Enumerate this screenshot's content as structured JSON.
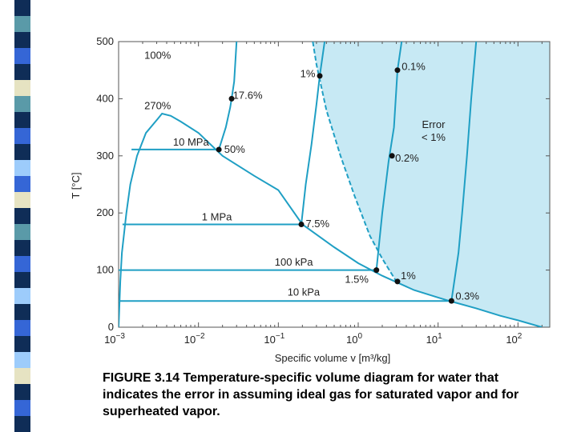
{
  "colors": {
    "curve": "#1f9fc4",
    "region": "#c7e9f4",
    "marker": "#111111",
    "strip": [
      "#0f2d57",
      "#5a9aa8",
      "#0f2d57",
      "#3566d6",
      "#0f2d57",
      "#e6e3c2",
      "#5a9aa8",
      "#0f2d57",
      "#3566d6",
      "#0f2d57",
      "#9dccfb",
      "#3566d6",
      "#e6e3c2",
      "#0f2d57",
      "#5a9aa8",
      "#0f2d57",
      "#3566d6",
      "#0f2d57",
      "#9dccfb",
      "#0f2d57",
      "#3566d6",
      "#0f2d57",
      "#9dccfb",
      "#e6e3c2",
      "#0f2d57",
      "#3566d6",
      "#0f2d57"
    ]
  },
  "chart_data": {
    "type": "line",
    "xlabel": "Specific volume v [m³/kg]",
    "ylabel": "T [°C]",
    "xscale": "log",
    "xlim": [
      0.001,
      250
    ],
    "ylim": [
      0,
      500
    ],
    "xticks": [
      {
        "value": 0.001,
        "base": "10",
        "exp": "−3"
      },
      {
        "value": 0.01,
        "base": "10",
        "exp": "−2"
      },
      {
        "value": 0.1,
        "base": "10",
        "exp": "−1"
      },
      {
        "value": 1,
        "base": "10",
        "exp": "0"
      },
      {
        "value": 10,
        "base": "10",
        "exp": "1"
      },
      {
        "value": 100,
        "base": "10",
        "exp": "2"
      }
    ],
    "yticks": [
      0,
      100,
      200,
      300,
      400,
      500
    ],
    "region_label": [
      "Error",
      "< 1%"
    ],
    "series": [
      {
        "kind": "saturation-dome",
        "points": [
          [
            0.001,
            0
          ],
          [
            0.00105,
            80
          ],
          [
            0.0011,
            130
          ],
          [
            0.00125,
            200
          ],
          [
            0.0014,
            250
          ],
          [
            0.0017,
            300
          ],
          [
            0.0022,
            340
          ],
          [
            0.0031,
            365
          ],
          [
            0.0035,
            374
          ],
          [
            0.0045,
            370
          ],
          [
            0.006,
            360
          ],
          [
            0.01,
            340
          ],
          [
            0.02,
            300
          ],
          [
            0.05,
            265
          ],
          [
            0.1,
            240
          ],
          [
            0.2,
            180
          ],
          [
            0.5,
            140
          ],
          [
            1,
            112
          ],
          [
            2,
            90
          ],
          [
            5,
            65
          ],
          [
            10,
            52
          ],
          [
            14.7,
            45
          ],
          [
            30,
            33
          ],
          [
            60,
            20
          ],
          [
            100,
            12
          ],
          [
            200,
            0
          ]
        ]
      },
      {
        "kind": "isobar",
        "label": "10 MPa",
        "points": [
          [
            0.00145,
            311
          ],
          [
            0.018,
            311
          ],
          [
            0.022,
            350
          ],
          [
            0.025,
            385
          ],
          [
            0.026,
            400
          ],
          [
            0.028,
            430
          ],
          [
            0.03,
            500
          ]
        ]
      },
      {
        "kind": "isobar",
        "label": "1 MPa",
        "points": [
          [
            0.00112,
            180
          ],
          [
            0.194,
            180
          ],
          [
            0.22,
            250
          ],
          [
            0.26,
            320
          ],
          [
            0.3,
            390
          ],
          [
            0.33,
            440
          ],
          [
            0.38,
            500
          ]
        ]
      },
      {
        "kind": "isobar",
        "label": "100 kPa",
        "points": [
          [
            0.001,
            100
          ],
          [
            1.69,
            100
          ],
          [
            2.0,
            200
          ],
          [
            2.4,
            290
          ],
          [
            2.8,
            350
          ],
          [
            3.1,
            450
          ],
          [
            3.5,
            500
          ]
        ]
      },
      {
        "kind": "isobar",
        "label": "10 kPa",
        "points": [
          [
            0.001,
            46
          ],
          [
            14.7,
            46
          ],
          [
            18,
            130
          ],
          [
            20,
            200
          ],
          [
            23,
            300
          ],
          [
            26,
            400
          ],
          [
            30,
            500
          ]
        ]
      },
      {
        "kind": "one-percent-boundary",
        "points": [
          [
            0.27,
            500
          ],
          [
            0.3,
            460
          ],
          [
            0.4,
            380
          ],
          [
            0.6,
            300
          ],
          [
            0.9,
            230
          ],
          [
            1.4,
            160
          ],
          [
            2.0,
            120
          ],
          [
            3.0,
            80
          ]
        ]
      }
    ],
    "annotations": [
      {
        "text": "100%",
        "x": 0.0021,
        "y": 470,
        "anchor": "start"
      },
      {
        "text": "270%",
        "x": 0.0021,
        "y": 382,
        "anchor": "start"
      },
      {
        "text": "10 MPa",
        "x": 0.0048,
        "y": 318,
        "anchor": "start"
      },
      {
        "text": "17.6%",
        "x": 0.027,
        "y": 400,
        "anchor": "start",
        "marker": [
          0.026,
          400
        ]
      },
      {
        "text": "50%",
        "x": 0.021,
        "y": 305,
        "anchor": "start",
        "marker": [
          0.018,
          311
        ]
      },
      {
        "text": "1%",
        "x": 0.29,
        "y": 438,
        "anchor": "end",
        "marker": [
          0.33,
          440
        ]
      },
      {
        "text": "0.1%",
        "x": 3.5,
        "y": 450,
        "anchor": "start",
        "marker": [
          3.1,
          450
        ]
      },
      {
        "text": "0.2%",
        "x": 2.9,
        "y": 290,
        "anchor": "start",
        "marker": [
          2.65,
          300
        ]
      },
      {
        "text": "1 MPa",
        "x": 0.011,
        "y": 187,
        "anchor": "start"
      },
      {
        "text": "7.5%",
        "x": 0.22,
        "y": 175,
        "anchor": "start",
        "marker": [
          0.194,
          180
        ]
      },
      {
        "text": "100 kPa",
        "x": 0.09,
        "y": 108,
        "anchor": "start"
      },
      {
        "text": "1.5%",
        "x": 1.35,
        "y": 78,
        "anchor": "end",
        "marker": [
          1.69,
          100
        ]
      },
      {
        "text": "1%",
        "x": 3.4,
        "y": 84,
        "anchor": "start",
        "marker": [
          3.1,
          80
        ]
      },
      {
        "text": "10 kPa",
        "x": 0.13,
        "y": 55,
        "anchor": "start"
      },
      {
        "text": "0.3%",
        "x": 16.5,
        "y": 48,
        "anchor": "start",
        "marker": [
          14.7,
          46
        ]
      }
    ]
  },
  "caption": "FIGURE 3.14 Temperature-specific volume  diagram for water that indicates the error in assuming ideal gas for saturated vapor and for superheated vapor."
}
